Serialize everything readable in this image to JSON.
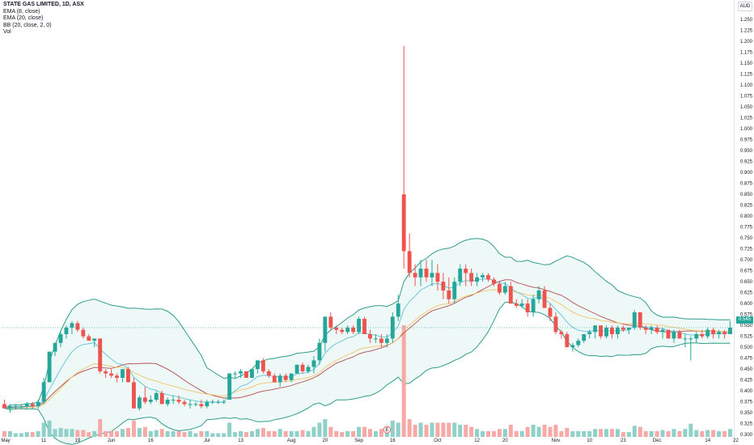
{
  "legend": {
    "title": "STATE GAS LIMITED, 1D, ASX",
    "ema8": "EMA (8, close)",
    "ema20": "EMA (20, close)",
    "bb": "BB (20, close, 2, 0)",
    "vol": "Vol"
  },
  "currency": "AUD",
  "last_price_label": "0.545",
  "event_marker": "E",
  "colors": {
    "up": "#26a69a",
    "down": "#ef5350",
    "vol_up": "#8fd0c8",
    "vol_down": "#f7a9a7",
    "ema8": "#5cc3d6",
    "ema20": "#f3c46b",
    "bb_basis": "#b34d4d",
    "bb_band": "#2e9c8a",
    "bb_fill": "#eef8f6"
  },
  "chart_data": {
    "type": "candlestick",
    "ylim": [
      0.28,
      1.28
    ],
    "y_ticks": [
      "0.300",
      "0.325",
      "0.350",
      "0.375",
      "0.400",
      "0.425",
      "0.450",
      "0.475",
      "0.500",
      "0.525",
      "0.550",
      "0.575",
      "0.600",
      "0.625",
      "0.650",
      "0.675",
      "0.700",
      "0.725",
      "0.750",
      "0.775",
      "0.800",
      "0.825",
      "0.850",
      "0.875",
      "0.900",
      "0.925",
      "0.950",
      "0.975",
      "1.000",
      "1.025",
      "1.050",
      "1.075",
      "1.100",
      "1.125",
      "1.150",
      "1.175",
      "1.200",
      "1.225",
      "1.250"
    ],
    "x_ticks": [
      {
        "label": "May",
        "i": 1
      },
      {
        "label": "11",
        "i": 7
      },
      {
        "label": "19",
        "i": 13
      },
      {
        "label": "Jun",
        "i": 19
      },
      {
        "label": "16",
        "i": 26
      },
      {
        "label": "Jul",
        "i": 36
      },
      {
        "label": "13",
        "i": 42
      },
      {
        "label": "Aug",
        "i": 51
      },
      {
        "label": "20",
        "i": 57
      },
      {
        "label": "Sep",
        "i": 63
      },
      {
        "label": "16",
        "i": 69
      },
      {
        "label": "Oct",
        "i": 77
      },
      {
        "label": "12",
        "i": 84
      },
      {
        "label": "20",
        "i": 89
      },
      {
        "label": "Nov",
        "i": 98
      },
      {
        "label": "10",
        "i": 104
      },
      {
        "label": "23",
        "i": 110
      },
      {
        "label": "Dec",
        "i": 116
      },
      {
        "label": "14",
        "i": 125
      },
      {
        "label": "22",
        "i": 130
      }
    ],
    "ohlc": [
      [
        0.37,
        0.38,
        0.36,
        0.36
      ],
      [
        0.36,
        0.37,
        0.35,
        0.365
      ],
      [
        0.365,
        0.37,
        0.36,
        0.365
      ],
      [
        0.365,
        0.37,
        0.36,
        0.365
      ],
      [
        0.365,
        0.375,
        0.36,
        0.37
      ],
      [
        0.37,
        0.375,
        0.36,
        0.365
      ],
      [
        0.365,
        0.38,
        0.36,
        0.375
      ],
      [
        0.375,
        0.43,
        0.37,
        0.42
      ],
      [
        0.42,
        0.49,
        0.42,
        0.49
      ],
      [
        0.49,
        0.51,
        0.48,
        0.51
      ],
      [
        0.51,
        0.535,
        0.5,
        0.53
      ],
      [
        0.53,
        0.55,
        0.52,
        0.545
      ],
      [
        0.545,
        0.56,
        0.53,
        0.555
      ],
      [
        0.555,
        0.56,
        0.535,
        0.54
      ],
      [
        0.54,
        0.545,
        0.52,
        0.525
      ],
      [
        0.525,
        0.53,
        0.515,
        0.515
      ],
      [
        0.515,
        0.52,
        0.5,
        0.52
      ],
      [
        0.52,
        0.52,
        0.44,
        0.445
      ],
      [
        0.445,
        0.45,
        0.43,
        0.44
      ],
      [
        0.44,
        0.45,
        0.43,
        0.435
      ],
      [
        0.435,
        0.44,
        0.42,
        0.43
      ],
      [
        0.43,
        0.45,
        0.42,
        0.45
      ],
      [
        0.45,
        0.455,
        0.42,
        0.42
      ],
      [
        0.42,
        0.43,
        0.36,
        0.36
      ],
      [
        0.36,
        0.39,
        0.355,
        0.385
      ],
      [
        0.385,
        0.41,
        0.37,
        0.375
      ],
      [
        0.375,
        0.39,
        0.37,
        0.38
      ],
      [
        0.38,
        0.4,
        0.375,
        0.395
      ],
      [
        0.395,
        0.4,
        0.37,
        0.37
      ],
      [
        0.37,
        0.385,
        0.365,
        0.38
      ],
      [
        0.38,
        0.39,
        0.37,
        0.38
      ],
      [
        0.38,
        0.39,
        0.37,
        0.375
      ],
      [
        0.375,
        0.38,
        0.365,
        0.37
      ],
      [
        0.37,
        0.38,
        0.36,
        0.37
      ],
      [
        0.37,
        0.375,
        0.365,
        0.37
      ],
      [
        0.37,
        0.38,
        0.36,
        0.365
      ],
      [
        0.365,
        0.38,
        0.36,
        0.375
      ],
      [
        0.375,
        0.38,
        0.37,
        0.375
      ],
      [
        0.375,
        0.38,
        0.37,
        0.375
      ],
      [
        0.375,
        0.38,
        0.37,
        0.375
      ],
      [
        0.38,
        0.44,
        0.38,
        0.44
      ],
      [
        0.44,
        0.445,
        0.43,
        0.44
      ],
      [
        0.44,
        0.45,
        0.43,
        0.445
      ],
      [
        0.445,
        0.445,
        0.43,
        0.43
      ],
      [
        0.43,
        0.45,
        0.43,
        0.45
      ],
      [
        0.45,
        0.47,
        0.44,
        0.47
      ],
      [
        0.47,
        0.475,
        0.44,
        0.445
      ],
      [
        0.445,
        0.45,
        0.43,
        0.435
      ],
      [
        0.435,
        0.44,
        0.42,
        0.42
      ],
      [
        0.42,
        0.44,
        0.41,
        0.435
      ],
      [
        0.435,
        0.44,
        0.42,
        0.425
      ],
      [
        0.425,
        0.44,
        0.42,
        0.44
      ],
      [
        0.44,
        0.46,
        0.44,
        0.46
      ],
      [
        0.46,
        0.465,
        0.44,
        0.445
      ],
      [
        0.445,
        0.46,
        0.44,
        0.455
      ],
      [
        0.455,
        0.48,
        0.44,
        0.47
      ],
      [
        0.47,
        0.52,
        0.46,
        0.51
      ],
      [
        0.51,
        0.57,
        0.49,
        0.57
      ],
      [
        0.57,
        0.58,
        0.54,
        0.545
      ],
      [
        0.545,
        0.55,
        0.53,
        0.54
      ],
      [
        0.54,
        0.545,
        0.53,
        0.535
      ],
      [
        0.535,
        0.55,
        0.53,
        0.545
      ],
      [
        0.545,
        0.55,
        0.53,
        0.535
      ],
      [
        0.535,
        0.57,
        0.53,
        0.565
      ],
      [
        0.565,
        0.57,
        0.53,
        0.53
      ],
      [
        0.53,
        0.54,
        0.51,
        0.52
      ],
      [
        0.52,
        0.53,
        0.51,
        0.52
      ],
      [
        0.52,
        0.53,
        0.5,
        0.51
      ],
      [
        0.51,
        0.53,
        0.5,
        0.52
      ],
      [
        0.52,
        0.58,
        0.51,
        0.57
      ],
      [
        0.57,
        0.62,
        0.56,
        0.6
      ],
      [
        0.85,
        1.19,
        0.68,
        0.72
      ],
      [
        0.72,
        0.76,
        0.66,
        0.67
      ],
      [
        0.67,
        0.69,
        0.64,
        0.66
      ],
      [
        0.66,
        0.7,
        0.64,
        0.68
      ],
      [
        0.68,
        0.7,
        0.65,
        0.66
      ],
      [
        0.66,
        0.7,
        0.64,
        0.67
      ],
      [
        0.67,
        0.69,
        0.63,
        0.65
      ],
      [
        0.65,
        0.67,
        0.61,
        0.63
      ],
      [
        0.63,
        0.66,
        0.6,
        0.61
      ],
      [
        0.61,
        0.66,
        0.6,
        0.65
      ],
      [
        0.65,
        0.69,
        0.64,
        0.68
      ],
      [
        0.68,
        0.69,
        0.64,
        0.67
      ],
      [
        0.67,
        0.68,
        0.64,
        0.65
      ],
      [
        0.65,
        0.67,
        0.64,
        0.66
      ],
      [
        0.66,
        0.67,
        0.65,
        0.665
      ],
      [
        0.665,
        0.67,
        0.65,
        0.655
      ],
      [
        0.655,
        0.66,
        0.64,
        0.645
      ],
      [
        0.645,
        0.65,
        0.62,
        0.625
      ],
      [
        0.625,
        0.65,
        0.62,
        0.64
      ],
      [
        0.64,
        0.65,
        0.6,
        0.6
      ],
      [
        0.6,
        0.61,
        0.59,
        0.595
      ],
      [
        0.595,
        0.61,
        0.59,
        0.6
      ],
      [
        0.6,
        0.61,
        0.57,
        0.58
      ],
      [
        0.58,
        0.62,
        0.57,
        0.61
      ],
      [
        0.61,
        0.64,
        0.6,
        0.63
      ],
      [
        0.63,
        0.64,
        0.59,
        0.59
      ],
      [
        0.59,
        0.6,
        0.56,
        0.57
      ],
      [
        0.57,
        0.58,
        0.53,
        0.535
      ],
      [
        0.535,
        0.54,
        0.52,
        0.53
      ],
      [
        0.53,
        0.535,
        0.5,
        0.5
      ],
      [
        0.5,
        0.51,
        0.49,
        0.505
      ],
      [
        0.505,
        0.52,
        0.5,
        0.515
      ],
      [
        0.515,
        0.53,
        0.51,
        0.53
      ],
      [
        0.53,
        0.54,
        0.52,
        0.535
      ],
      [
        0.535,
        0.55,
        0.52,
        0.55
      ],
      [
        0.55,
        0.55,
        0.52,
        0.525
      ],
      [
        0.525,
        0.55,
        0.52,
        0.545
      ],
      [
        0.545,
        0.55,
        0.52,
        0.53
      ],
      [
        0.53,
        0.55,
        0.52,
        0.545
      ],
      [
        0.545,
        0.55,
        0.535,
        0.54
      ],
      [
        0.54,
        0.545,
        0.53,
        0.545
      ],
      [
        0.545,
        0.585,
        0.54,
        0.58
      ],
      [
        0.58,
        0.58,
        0.54,
        0.545
      ],
      [
        0.545,
        0.55,
        0.53,
        0.54
      ],
      [
        0.54,
        0.55,
        0.53,
        0.545
      ],
      [
        0.545,
        0.55,
        0.53,
        0.535
      ],
      [
        0.535,
        0.545,
        0.52,
        0.54
      ],
      [
        0.54,
        0.54,
        0.52,
        0.52
      ],
      [
        0.52,
        0.54,
        0.51,
        0.535
      ],
      [
        0.535,
        0.54,
        0.52,
        0.52
      ],
      [
        0.52,
        0.53,
        0.5,
        0.52
      ],
      [
        0.52,
        0.525,
        0.47,
        0.52
      ],
      [
        0.52,
        0.535,
        0.51,
        0.53
      ],
      [
        0.53,
        0.54,
        0.52,
        0.525
      ],
      [
        0.525,
        0.545,
        0.52,
        0.54
      ],
      [
        0.54,
        0.545,
        0.52,
        0.53
      ],
      [
        0.53,
        0.54,
        0.52,
        0.535
      ],
      [
        0.535,
        0.54,
        0.52,
        0.53
      ],
      [
        0.53,
        0.56,
        0.53,
        0.545
      ]
    ],
    "volume_special": [
      {
        "i": 71,
        "value": 0.23
      }
    ]
  }
}
